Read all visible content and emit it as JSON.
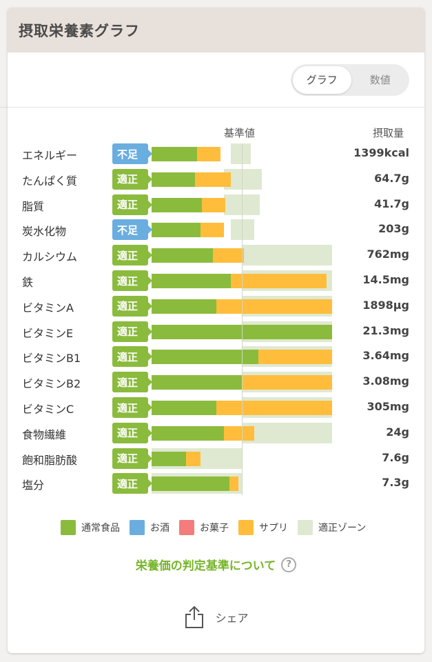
{
  "header": {
    "title": "摂取栄養素グラフ"
  },
  "toggle": {
    "graph": "グラフ",
    "numbers": "数値"
  },
  "columns": {
    "reference": "基準値",
    "intake": "摂取量"
  },
  "colors": {
    "food": "#8bbb3d",
    "alcohol": "#6aaee0",
    "sweets": "#f47c7c",
    "supplement": "#ffbd3b",
    "zone": "#dfe9d1"
  },
  "rows": [
    {
      "name": "エネルギー",
      "status": "不足",
      "value": "1399kcal",
      "food_pct": 25,
      "supp_pct": 13,
      "zone_start": 44,
      "zone_end": 55
    },
    {
      "name": "たんぱく質",
      "status": "適正",
      "value": "64.7g",
      "food_pct": 24,
      "supp_pct": 20,
      "zone_start": 40,
      "zone_end": 61
    },
    {
      "name": "脂質",
      "status": "適正",
      "value": "41.7g",
      "food_pct": 28,
      "supp_pct": 13,
      "zone_start": 40,
      "zone_end": 60
    },
    {
      "name": "炭水化物",
      "status": "不足",
      "value": "203g",
      "food_pct": 27,
      "supp_pct": 13,
      "zone_start": 44,
      "zone_end": 57
    },
    {
      "name": "カルシウム",
      "status": "適正",
      "value": "762mg",
      "food_pct": 34,
      "supp_pct": 17,
      "zone_start": 50,
      "zone_end": 100
    },
    {
      "name": "鉄",
      "status": "適正",
      "value": "14.5mg",
      "food_pct": 44,
      "supp_pct": 53,
      "zone_start": 50,
      "zone_end": 100
    },
    {
      "name": "ビタミンA",
      "status": "適正",
      "value": "1898µg",
      "food_pct": 36,
      "supp_pct": 64,
      "zone_start": 50,
      "zone_end": 100
    },
    {
      "name": "ビタミンE",
      "status": "適正",
      "value": "21.3mg",
      "food_pct": 100,
      "supp_pct": 0,
      "zone_start": 50,
      "zone_end": 100
    },
    {
      "name": "ビタミンB1",
      "status": "適正",
      "value": "3.64mg",
      "food_pct": 59,
      "supp_pct": 41,
      "zone_start": 50,
      "zone_end": 100
    },
    {
      "name": "ビタミンB2",
      "status": "適正",
      "value": "3.08mg",
      "food_pct": 50,
      "supp_pct": 50,
      "zone_start": 50,
      "zone_end": 100
    },
    {
      "name": "ビタミンC",
      "status": "適正",
      "value": "305mg",
      "food_pct": 36,
      "supp_pct": 64,
      "zone_start": 50,
      "zone_end": 100
    },
    {
      "name": "食物繊維",
      "status": "適正",
      "value": "24g",
      "food_pct": 40,
      "supp_pct": 17,
      "zone_start": 50,
      "zone_end": 100
    },
    {
      "name": "飽和脂肪酸",
      "status": "適正",
      "value": "7.6g",
      "food_pct": 19,
      "supp_pct": 8,
      "zone_start": 0,
      "zone_end": 50
    },
    {
      "name": "塩分",
      "status": "適正",
      "value": "7.3g",
      "food_pct": 43,
      "supp_pct": 5,
      "zone_start": 0,
      "zone_end": 50
    }
  ],
  "legend": [
    {
      "label": "通常食品",
      "color": "#8bbb3d"
    },
    {
      "label": "お酒",
      "color": "#6aaee0"
    },
    {
      "label": "お菓子",
      "color": "#f47c7c"
    },
    {
      "label": "サプリ",
      "color": "#ffbd3b"
    },
    {
      "label": "適正ゾーン",
      "color": "#dfe9d1"
    }
  ],
  "link": {
    "text": "栄養価の判定基準について",
    "help": "?"
  },
  "share": {
    "label": "シェア"
  }
}
